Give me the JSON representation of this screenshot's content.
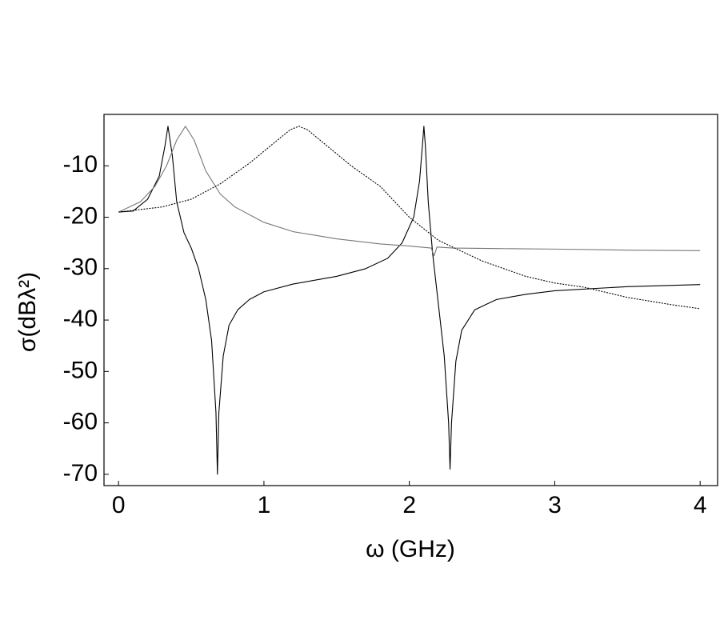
{
  "chart_data": {
    "type": "line",
    "x_label": "ω (GHz)",
    "y_label": "σ(dBλ²)",
    "xlim": [
      -0.1,
      4.12
    ],
    "ylim": [
      -72.2,
      0
    ],
    "xticks": [
      0,
      1,
      2,
      3,
      4
    ],
    "yticks": [
      -10,
      -20,
      -30,
      -40,
      -50,
      -60,
      -70
    ],
    "grid": false,
    "series": [
      {
        "color": "#000000",
        "style": "solid",
        "x": [
          0,
          0.1,
          0.2,
          0.28,
          0.32,
          0.34,
          0.37,
          0.4,
          0.45,
          0.5,
          0.55,
          0.6,
          0.64,
          0.67,
          0.68,
          0.69,
          0.72,
          0.76,
          0.82,
          0.9,
          1.0,
          1.2,
          1.5,
          1.7,
          1.85,
          1.95,
          2.03,
          2.07,
          2.09,
          2.1,
          2.11,
          2.13,
          2.16,
          2.2,
          2.24,
          2.27,
          2.28,
          2.29,
          2.32,
          2.36,
          2.45,
          2.6,
          2.8,
          3.0,
          3.5,
          4.0
        ],
        "values": [
          -19,
          -18.8,
          -16.5,
          -12,
          -6,
          -2.3,
          -8,
          -17,
          -23,
          -26,
          -30,
          -36,
          -44,
          -58,
          -70,
          -58,
          -47,
          -41,
          -38,
          -36,
          -34.5,
          -33,
          -31.5,
          -30,
          -28,
          -25,
          -20,
          -13,
          -6,
          -2.3,
          -6,
          -17,
          -27,
          -37,
          -47,
          -60,
          -69,
          -60,
          -48,
          -42,
          -38,
          -36,
          -35,
          -34.3,
          -33.5,
          -33.1
        ]
      },
      {
        "color": "#777777",
        "style": "solid",
        "x": [
          0,
          0.15,
          0.25,
          0.33,
          0.4,
          0.46,
          0.52,
          0.6,
          0.7,
          0.8,
          1.0,
          1.2,
          1.5,
          1.8,
          2.0,
          2.15,
          2.17,
          2.19,
          2.3,
          2.6,
          3.0,
          3.5,
          4.0
        ],
        "values": [
          -19,
          -17,
          -14,
          -10,
          -5,
          -2.3,
          -5,
          -11,
          -15.5,
          -18,
          -21,
          -22.8,
          -24.2,
          -25.2,
          -25.6,
          -26,
          -27.5,
          -25.8,
          -26,
          -26.1,
          -26.2,
          -26.4,
          -26.5
        ]
      },
      {
        "color": "#000000",
        "style": "dashed",
        "x": [
          0,
          0.3,
          0.5,
          0.7,
          0.9,
          1.05,
          1.18,
          1.24,
          1.3,
          1.45,
          1.6,
          1.8,
          2.0,
          2.2,
          2.5,
          2.8,
          3.0,
          3.2,
          3.5,
          3.8,
          4.0
        ],
        "values": [
          -19,
          -18,
          -16.5,
          -13.5,
          -9.5,
          -6,
          -3,
          -2.3,
          -3,
          -6.5,
          -10,
          -14,
          -20,
          -24.5,
          -28.5,
          -31.5,
          -32.8,
          -33.6,
          -35.6,
          -37,
          -37.8
        ]
      }
    ]
  }
}
